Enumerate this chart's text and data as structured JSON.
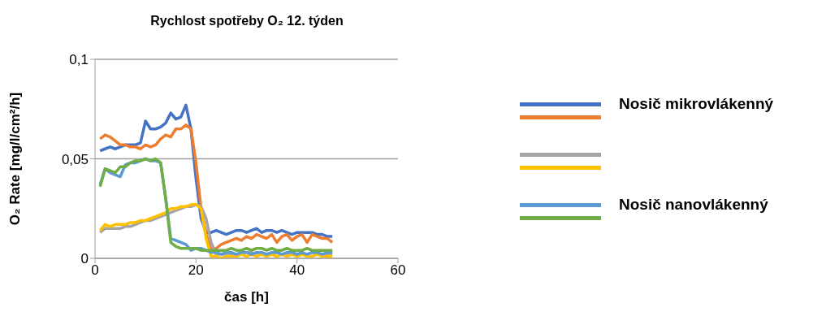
{
  "chart_data": {
    "type": "line",
    "title": "Rychlost spotřeby O₂ 12. týden",
    "xlabel": "čas [h]",
    "ylabel": "O₂ Rate [mg/l/cm²/h]",
    "x": [
      1,
      2,
      3,
      4,
      5,
      6,
      7,
      8,
      9,
      10,
      11,
      12,
      13,
      14,
      15,
      16,
      17,
      18,
      19,
      20,
      21,
      22,
      23,
      24,
      25,
      26,
      27,
      28,
      29,
      30,
      31,
      32,
      33,
      34,
      35,
      36,
      37,
      38,
      39,
      40,
      41,
      42,
      43,
      44,
      45,
      46,
      47
    ],
    "series": [
      {
        "name": "Nosič mikrovlákenný",
        "color": "#4472c4",
        "values": [
          0.054,
          0.055,
          0.056,
          0.055,
          0.056,
          0.057,
          0.057,
          0.057,
          0.058,
          0.069,
          0.065,
          0.065,
          0.066,
          0.068,
          0.073,
          0.07,
          0.071,
          0.077,
          0.065,
          0.04,
          0.02,
          0.013,
          0.013,
          0.014,
          0.013,
          0.012,
          0.013,
          0.014,
          0.014,
          0.013,
          0.014,
          0.015,
          0.013,
          0.014,
          0.014,
          0.013,
          0.014,
          0.013,
          0.012,
          0.013,
          0.013,
          0.013,
          0.013,
          0.012,
          0.012,
          0.011,
          0.011
        ]
      },
      {
        "color": "#ed7d31",
        "values": [
          0.06,
          0.062,
          0.061,
          0.059,
          0.057,
          0.057,
          0.056,
          0.056,
          0.055,
          0.057,
          0.056,
          0.057,
          0.06,
          0.062,
          0.061,
          0.065,
          0.065,
          0.067,
          0.065,
          0.048,
          0.025,
          0.012,
          0.004,
          0.005,
          0.007,
          0.008,
          0.009,
          0.01,
          0.009,
          0.011,
          0.01,
          0.012,
          0.011,
          0.01,
          0.012,
          0.008,
          0.011,
          0.012,
          0.009,
          0.011,
          0.012,
          0.008,
          0.012,
          0.011,
          0.01,
          0.01,
          0.008
        ]
      },
      {
        "color": "#a5a5a5",
        "values": [
          0.013,
          0.015,
          0.015,
          0.015,
          0.015,
          0.016,
          0.016,
          0.017,
          0.018,
          0.019,
          0.019,
          0.02,
          0.021,
          0.022,
          0.023,
          0.024,
          0.025,
          0.026,
          0.026,
          0.027,
          0.026,
          0.02,
          0.008,
          0.002,
          0.002,
          0.002,
          0.002,
          0.002,
          0.002,
          0.003,
          0.003,
          0.002,
          0.003,
          0.002,
          0.002,
          0.003,
          0.002,
          0.002,
          0.003,
          0.002,
          0.002,
          0.002,
          0.003,
          0.002,
          0.002,
          0.002,
          0.002
        ]
      },
      {
        "color": "#ffc000",
        "values": [
          0.014,
          0.017,
          0.016,
          0.017,
          0.017,
          0.017,
          0.018,
          0.018,
          0.019,
          0.019,
          0.02,
          0.021,
          0.022,
          0.023,
          0.025,
          0.025,
          0.026,
          0.026,
          0.027,
          0.027,
          0.025,
          0.01,
          0.001,
          0.001,
          0.0,
          0.001,
          0.001,
          0.001,
          0.002,
          0.001,
          0.002,
          0.001,
          0.002,
          0.001,
          0.002,
          0.001,
          0.002,
          0.001,
          0.002,
          0.001,
          0.002,
          0.001,
          0.001,
          0.002,
          0.001,
          0.001,
          0.001
        ]
      },
      {
        "name": "Nosič nanovlákenný",
        "color": "#5b9bd5",
        "values": [
          0.037,
          0.045,
          0.043,
          0.042,
          0.041,
          0.047,
          0.048,
          0.048,
          0.049,
          0.05,
          0.049,
          0.049,
          0.048,
          0.03,
          0.01,
          0.009,
          0.008,
          0.007,
          0.004,
          0.005,
          0.005,
          0.004,
          0.003,
          0.003,
          0.002,
          0.003,
          0.003,
          0.002,
          0.003,
          0.003,
          0.002,
          0.003,
          0.003,
          0.002,
          0.003,
          0.003,
          0.002,
          0.003,
          0.003,
          0.002,
          0.003,
          0.002,
          0.003,
          0.003,
          0.002,
          0.003,
          0.003
        ]
      },
      {
        "color": "#70ad47",
        "values": [
          0.036,
          0.045,
          0.044,
          0.043,
          0.046,
          0.046,
          0.048,
          0.049,
          0.049,
          0.05,
          0.049,
          0.05,
          0.048,
          0.03,
          0.008,
          0.006,
          0.005,
          0.005,
          0.005,
          0.005,
          0.004,
          0.004,
          0.004,
          0.004,
          0.004,
          0.004,
          0.005,
          0.004,
          0.004,
          0.005,
          0.004,
          0.005,
          0.005,
          0.004,
          0.005,
          0.004,
          0.004,
          0.005,
          0.004,
          0.004,
          0.004,
          0.005,
          0.004,
          0.004,
          0.004,
          0.004,
          0.004
        ]
      }
    ],
    "xlim": [
      0,
      60
    ],
    "xticks": [
      0,
      20,
      40,
      60
    ],
    "ylim": [
      0,
      0.1
    ],
    "yticks": [
      {
        "value": 0,
        "label": "0"
      },
      {
        "value": 0.05,
        "label": "0,05"
      },
      {
        "value": 0.1,
        "label": "0,1"
      }
    ],
    "grid": "y",
    "legend": "right",
    "marker": "none",
    "line_style": "solid"
  }
}
